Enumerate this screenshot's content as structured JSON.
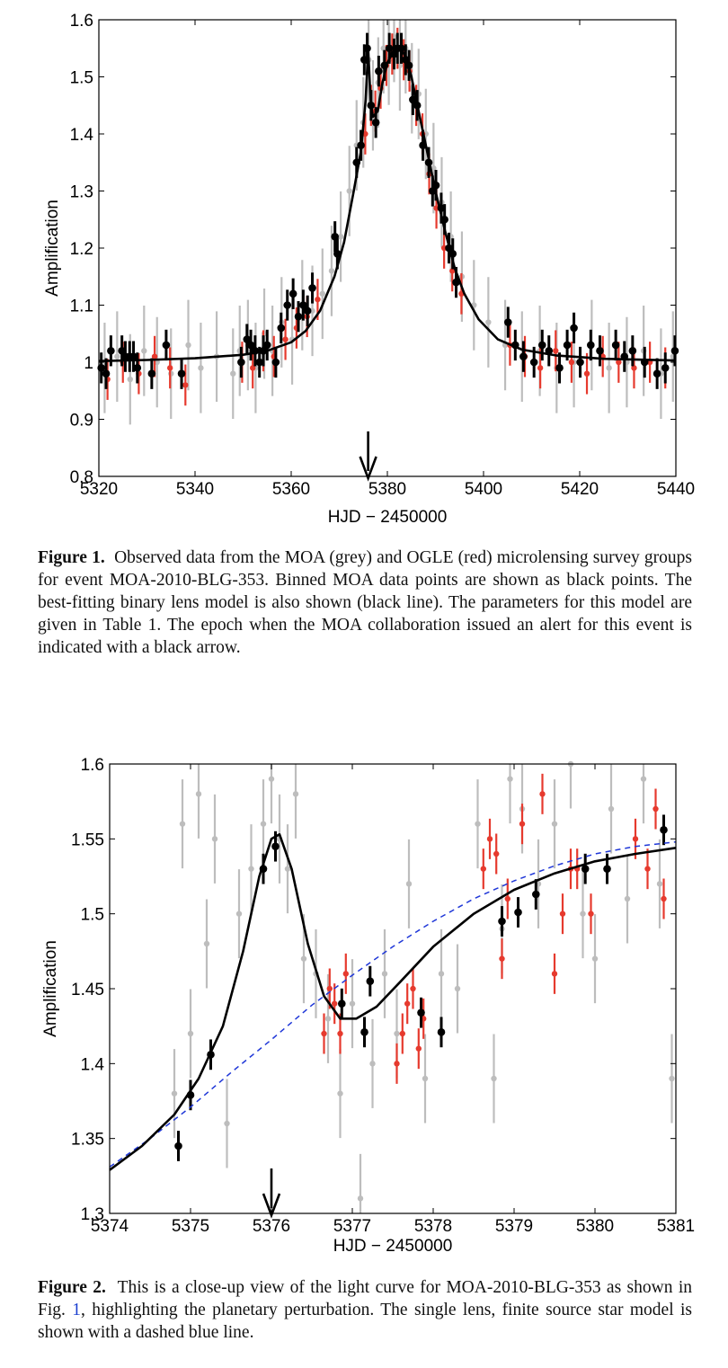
{
  "figure1": {
    "chart_data": {
      "type": "scatter",
      "xlabel": "HJD − 2450000",
      "ylabel": "Amplification",
      "xlim": [
        5320,
        5440
      ],
      "ylim": [
        0.8,
        1.6
      ],
      "xticks": [
        "5320",
        "5340",
        "5360",
        "5380",
        "5400",
        "5420",
        "5440"
      ],
      "yticks": [
        "0.8",
        "0.9",
        "1",
        "1.1",
        "1.2",
        "1.3",
        "1.4",
        "1.5",
        "1.6"
      ],
      "alert_arrow_x": 5376,
      "series": [
        {
          "name": "MOA",
          "color": "#bdbdbd",
          "x": [
            5321.2,
            5323.8,
            5326.5,
            5329.4,
            5332.1,
            5335.0,
            5338.6,
            5341.2,
            5344.5,
            5347.9,
            5349.3,
            5351.0,
            5352.6,
            5354.4,
            5356.1,
            5358.0,
            5360.2,
            5362.3,
            5364.4,
            5366.5,
            5368.4,
            5370.3,
            5372.1,
            5373.6,
            5375.0,
            5376.1,
            5377.0,
            5378.1,
            5379.2,
            5380.3,
            5381.4,
            5382.6,
            5383.8,
            5385.1,
            5386.5,
            5388.0,
            5389.6,
            5391.3,
            5393.2,
            5395.5,
            5398.0,
            5401.0,
            5404.5,
            5408.0,
            5411.7,
            5415.2,
            5418.8,
            5422.5,
            5426.1,
            5429.8,
            5433.3,
            5436.9,
            5439.4
          ],
          "y": [
            0.99,
            1.01,
            0.97,
            1.02,
            1.0,
            0.98,
            1.03,
            0.99,
            1.01,
            0.98,
            1.02,
            1.03,
            0.99,
            1.05,
            1.02,
            1.07,
            1.04,
            1.1,
            1.09,
            1.12,
            1.16,
            1.22,
            1.3,
            1.38,
            1.42,
            1.53,
            1.45,
            1.49,
            1.55,
            1.53,
            1.57,
            1.52,
            1.55,
            1.48,
            1.47,
            1.4,
            1.34,
            1.28,
            1.22,
            1.15,
            1.1,
            1.07,
            1.03,
            1.01,
            1.02,
            0.99,
            1.0,
            1.03,
            0.99,
            1.0,
            1.02,
            0.98,
            1.01
          ]
        },
        {
          "name": "OGLE",
          "color": "#e63a2e",
          "x": [
            5321.8,
            5325.0,
            5328.3,
            5331.6,
            5334.8,
            5338.0,
            5349.8,
            5352.0,
            5354.2,
            5356.4,
            5358.8,
            5361.1,
            5363.3,
            5365.5,
            5375.4,
            5376.6,
            5377.5,
            5378.6,
            5379.8,
            5381.0,
            5382.1,
            5383.4,
            5384.6,
            5386.0,
            5387.3,
            5388.7,
            5390.2,
            5391.8,
            5393.5,
            5395.4,
            5405.5,
            5408.6,
            5411.8,
            5415.0,
            5418.3,
            5421.5,
            5424.8,
            5428.1,
            5431.3,
            5434.6,
            5437.8
          ],
          "y": [
            0.97,
            1.0,
            0.98,
            1.01,
            0.99,
            0.96,
            1.0,
            0.99,
            1.02,
            1.01,
            1.04,
            1.06,
            1.08,
            1.11,
            1.4,
            1.45,
            1.44,
            1.48,
            1.52,
            1.54,
            1.55,
            1.53,
            1.51,
            1.45,
            1.4,
            1.33,
            1.27,
            1.2,
            1.16,
            1.12,
            1.03,
            1.01,
            0.99,
            1.02,
            1.0,
            0.98,
            1.01,
            1.0,
            0.99,
            1.0,
            0.99
          ]
        },
        {
          "name": "binned MOA",
          "color": "#000000",
          "x": [
            5320.5,
            5321.5,
            5322.5,
            5324.8,
            5325.5,
            5326.4,
            5327.2,
            5328.0,
            5331.0,
            5334.0,
            5337.2,
            5349.6,
            5350.8,
            5351.6,
            5352.5,
            5353.4,
            5354.2,
            5355.0,
            5356.8,
            5357.9,
            5359.2,
            5360.4,
            5361.5,
            5362.5,
            5363.4,
            5364.4,
            5369.1,
            5369.6,
            5373.6,
            5374.5,
            5375.2,
            5375.8,
            5376.6,
            5377.6,
            5378.2,
            5379.4,
            5380.4,
            5381.4,
            5382.1,
            5382.9,
            5383.8,
            5384.5,
            5385.3,
            5386.2,
            5387.4,
            5388.6,
            5389.4,
            5390.1,
            5391.2,
            5391.9,
            5392.8,
            5393.6,
            5394.3,
            5405.1,
            5406.6,
            5408.3,
            5410.5,
            5412.2,
            5413.6,
            5415.8,
            5417.4,
            5418.8,
            5420.1,
            5422.3,
            5424.2,
            5427.5,
            5429.3,
            5431.0,
            5433.5,
            5436.1,
            5437.8,
            5439.8
          ],
          "y": [
            0.99,
            0.98,
            1.02,
            1.02,
            1.01,
            1.01,
            1.01,
            0.99,
            0.98,
            1.03,
            0.98,
            1.0,
            1.04,
            1.03,
            1.02,
            1.0,
            1.02,
            1.03,
            1.0,
            1.06,
            1.1,
            1.12,
            1.08,
            1.1,
            1.09,
            1.13,
            1.22,
            1.19,
            1.35,
            1.38,
            1.53,
            1.55,
            1.45,
            1.42,
            1.51,
            1.52,
            1.55,
            1.54,
            1.55,
            1.55,
            1.53,
            1.52,
            1.46,
            1.45,
            1.38,
            1.35,
            1.3,
            1.31,
            1.27,
            1.25,
            1.2,
            1.19,
            1.14,
            1.07,
            1.03,
            1.01,
            1.0,
            1.03,
            1.02,
            0.99,
            1.03,
            1.06,
            1.0,
            1.03,
            1.02,
            1.03,
            1.01,
            1.02,
            1.0,
            0.98,
            0.99,
            1.02
          ]
        }
      ],
      "model": {
        "name": "best-fitting binary lens model",
        "color": "#000000",
        "x": [
          5320,
          5330,
          5340,
          5350,
          5355,
          5360,
          5363,
          5366,
          5369,
          5371,
          5373,
          5374.5,
          5375.5,
          5376.0,
          5376.5,
          5377.0,
          5378,
          5379,
          5380,
          5381,
          5382,
          5383,
          5384,
          5385,
          5386,
          5387,
          5388,
          5390,
          5392,
          5394,
          5396,
          5399,
          5403,
          5408,
          5415,
          5425,
          5440
        ],
        "y": [
          1.002,
          1.004,
          1.007,
          1.013,
          1.02,
          1.035,
          1.055,
          1.09,
          1.15,
          1.21,
          1.3,
          1.37,
          1.46,
          1.55,
          1.46,
          1.43,
          1.44,
          1.49,
          1.525,
          1.54,
          1.552,
          1.548,
          1.53,
          1.5,
          1.46,
          1.42,
          1.38,
          1.3,
          1.23,
          1.165,
          1.12,
          1.075,
          1.04,
          1.022,
          1.012,
          1.006,
          1.003
        ]
      }
    },
    "caption_label": "Figure 1.",
    "caption_text": "Observed data from the MOA (grey) and OGLE (red) microlensing survey groups for event MOA-2010-BLG-353. Binned MOA data points are shown as black points. The best-fitting binary lens model is also shown (black line). The parameters for this model are given in Table 1. The epoch when the MOA collaboration issued an alert for this event is indicated with a black arrow."
  },
  "figure2": {
    "chart_data": {
      "type": "scatter",
      "xlabel": "HJD − 2450000",
      "ylabel": "Amplification",
      "xlim": [
        5374,
        5381
      ],
      "ylim": [
        1.3,
        1.6
      ],
      "xticks": [
        "5374",
        "5375",
        "5376",
        "5377",
        "5378",
        "5379",
        "5380",
        "5381"
      ],
      "yticks": [
        "1.3",
        "1.35",
        "1.4",
        "1.45",
        "1.5",
        "1.55",
        "1.6"
      ],
      "alert_arrow_x": 5376,
      "series": [
        {
          "name": "MOA",
          "color": "#bdbdbd",
          "x": [
            5374.8,
            5374.9,
            5375.0,
            5375.1,
            5375.2,
            5375.3,
            5375.45,
            5375.6,
            5375.75,
            5375.9,
            5376.0,
            5376.1,
            5376.2,
            5376.3,
            5376.4,
            5376.55,
            5376.7,
            5376.85,
            5377.0,
            5377.1,
            5377.25,
            5377.4,
            5377.55,
            5377.7,
            5377.9,
            5378.1,
            5378.3,
            5378.55,
            5378.75,
            5378.85,
            5378.95,
            5379.1,
            5379.3,
            5379.5,
            5379.7,
            5379.85,
            5380.0,
            5380.2,
            5380.4,
            5380.6,
            5380.8,
            5380.95
          ],
          "y": [
            1.38,
            1.56,
            1.42,
            1.58,
            1.48,
            1.55,
            1.36,
            1.5,
            1.53,
            1.56,
            1.59,
            1.55,
            1.53,
            1.58,
            1.47,
            1.46,
            1.43,
            1.38,
            1.44,
            1.31,
            1.4,
            1.46,
            1.42,
            1.52,
            1.39,
            1.46,
            1.45,
            1.56,
            1.39,
            1.49,
            1.59,
            1.57,
            1.52,
            1.56,
            1.6,
            1.5,
            1.47,
            1.57,
            1.51,
            1.59,
            1.52,
            1.39
          ]
        },
        {
          "name": "OGLE",
          "color": "#e63a2e",
          "x": [
            5376.65,
            5376.72,
            5376.78,
            5376.85,
            5376.92,
            5377.55,
            5377.62,
            5377.68,
            5377.75,
            5377.82,
            5377.88,
            5378.62,
            5378.7,
            5378.78,
            5378.85,
            5378.92,
            5379.1,
            5379.35,
            5379.5,
            5379.6,
            5379.7,
            5379.78,
            5379.95,
            5380.5,
            5380.65,
            5380.75,
            5380.85
          ],
          "y": [
            1.42,
            1.45,
            1.44,
            1.42,
            1.46,
            1.4,
            1.42,
            1.44,
            1.45,
            1.41,
            1.43,
            1.53,
            1.55,
            1.54,
            1.47,
            1.51,
            1.56,
            1.58,
            1.46,
            1.5,
            1.53,
            1.53,
            1.5,
            1.55,
            1.53,
            1.57,
            1.51
          ]
        },
        {
          "name": "binned MOA",
          "color": "#000000",
          "x": [
            5374.85,
            5375.0,
            5375.25,
            5375.9,
            5376.05,
            5376.87,
            5377.15,
            5377.22,
            5377.85,
            5378.1,
            5378.85,
            5379.05,
            5379.27,
            5379.88,
            5380.15,
            5380.85
          ],
          "y": [
            1.345,
            1.379,
            1.406,
            1.53,
            1.545,
            1.44,
            1.421,
            1.455,
            1.434,
            1.421,
            1.495,
            1.501,
            1.513,
            1.53,
            1.53,
            1.556
          ]
        }
      ],
      "model": {
        "name": "binary lens model",
        "color": "#000000",
        "x": [
          5374,
          5374.4,
          5374.8,
          5375.1,
          5375.4,
          5375.65,
          5375.85,
          5376.0,
          5376.1,
          5376.25,
          5376.45,
          5376.65,
          5376.85,
          5377.05,
          5377.3,
          5377.6,
          5378.0,
          5378.5,
          5379.0,
          5379.5,
          5380.0,
          5380.5,
          5381
        ],
        "y": [
          1.329,
          1.345,
          1.366,
          1.39,
          1.425,
          1.475,
          1.525,
          1.55,
          1.553,
          1.53,
          1.48,
          1.445,
          1.43,
          1.43,
          1.438,
          1.455,
          1.478,
          1.5,
          1.516,
          1.527,
          1.535,
          1.54,
          1.544
        ]
      },
      "single_lens_model": {
        "name": "single lens, finite source star model",
        "color": "#1f37d8",
        "dashed": true,
        "x": [
          5374,
          5374.5,
          5375,
          5375.5,
          5376,
          5376.5,
          5377,
          5377.5,
          5378,
          5378.5,
          5379,
          5379.5,
          5380,
          5380.5,
          5381
        ],
        "y": [
          1.331,
          1.35,
          1.371,
          1.394,
          1.416,
          1.439,
          1.459,
          1.478,
          1.495,
          1.51,
          1.522,
          1.532,
          1.54,
          1.545,
          1.548
        ]
      }
    },
    "caption_label": "Figure 2.",
    "caption_text_1": "This is a close-up view of the light curve for MOA-2010-BLG-353 as shown in Fig. ",
    "caption_ref": "1",
    "caption_text_2": ", highlighting the planetary perturbation. The single lens, finite source star model is shown with a dashed blue line."
  }
}
